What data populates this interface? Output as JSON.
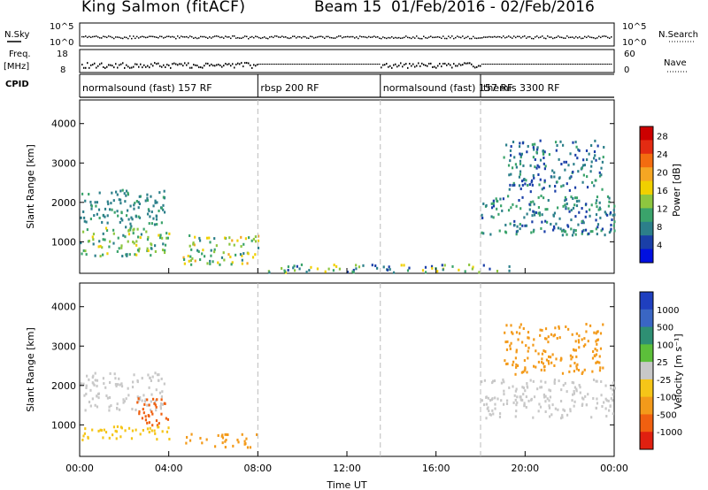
{
  "header": {
    "station": "King Salmon (fitACF)",
    "beam_info": "Beam 15  01/Feb/2016 - 02/Feb/2016"
  },
  "strip_labels": {
    "nsky": "N.Sky",
    "freq": "Freq.",
    "mhz": "[MHz]",
    "cpid": "CPID",
    "nsearch": "N.Search",
    "nave": "Nave",
    "nsky_top": "10^5",
    "nsky_bottom": "10^0",
    "nsearch_top": "10^5",
    "nsearch_bottom": "10^0",
    "freq_top": "18",
    "freq_bottom": "8",
    "nave_top": "60",
    "nave_bottom": "0"
  },
  "cpid_segments": [
    {
      "label": "normalsound (fast) 157 RF",
      "start": "00:00",
      "end": "08:00"
    },
    {
      "label": "rbsp 200 RF",
      "start": "08:00",
      "end": "13:30"
    },
    {
      "label": "normalsound (fast) 157 RF",
      "start": "13:30",
      "end": "18:00"
    },
    {
      "label": "themis 3300 RF",
      "start": "18:00",
      "end": "24:00"
    }
  ],
  "chart_data": [
    {
      "type": "heatmap",
      "title": "",
      "xlabel": "",
      "ylabel": "Slant Range [km]",
      "y_ticks": [
        "1000",
        "2000",
        "3000",
        "4000"
      ],
      "ylim": [
        200,
        4600
      ],
      "colorbar": {
        "label": "Power [dB]",
        "ticks": [
          "4",
          "8",
          "12",
          "16",
          "20",
          "24",
          "28"
        ],
        "range": [
          0,
          30
        ],
        "colors": [
          "#0010e0",
          "#1a3fa8",
          "#2c7f8a",
          "#3aa36b",
          "#8dc63f",
          "#f0d000",
          "#f5a623",
          "#f36c10",
          "#e32b12",
          "#cc0000"
        ]
      },
      "regions": [
        {
          "t_start": 0.0,
          "t_end": 3.8,
          "r_min": 1400,
          "r_max": 2350,
          "power_dB": [
            6,
            10
          ]
        },
        {
          "t_start": 0.0,
          "t_end": 4.0,
          "r_min": 650,
          "r_max": 1400,
          "power_dB": [
            8,
            16
          ]
        },
        {
          "t_start": 4.6,
          "t_end": 8.0,
          "r_min": 450,
          "r_max": 1200,
          "power_dB": [
            6,
            20
          ]
        },
        {
          "t_start": 8.0,
          "t_end": 19.5,
          "r_min": 250,
          "r_max": 450,
          "power_dB": [
            4,
            18
          ]
        },
        {
          "t_start": 18.0,
          "t_end": 24.0,
          "r_min": 1200,
          "r_max": 2200,
          "power_dB": [
            4,
            12
          ]
        },
        {
          "t_start": 19.0,
          "t_end": 23.5,
          "r_min": 2300,
          "r_max": 3600,
          "power_dB": [
            4,
            10
          ]
        }
      ]
    },
    {
      "type": "heatmap",
      "title": "",
      "xlabel": "Time UT",
      "ylabel": "Slant Range [km]",
      "x_ticks": [
        "00:00",
        "04:00",
        "08:00",
        "12:00",
        "16:00",
        "20:00",
        "00:00"
      ],
      "xlim_hours": [
        0,
        24
      ],
      "y_ticks": [
        "1000",
        "2000",
        "3000",
        "4000"
      ],
      "ylim": [
        200,
        4600
      ],
      "colorbar": {
        "label": "Velocity [m s⁻¹]",
        "ticks": [
          "1000",
          "500",
          "100",
          "25",
          "-25",
          "-100",
          "-500",
          "-1000"
        ],
        "colors": [
          "#1f3fbf",
          "#3a66c4",
          "#2e8f73",
          "#5cbf3a",
          "#c8c8c8",
          "#f5c518",
          "#f39a1a",
          "#f06010",
          "#e02010"
        ]
      },
      "ground_scatter_color": "#c8c8c8",
      "regions": [
        {
          "t_start": 0.0,
          "t_end": 3.8,
          "r_min": 1400,
          "r_max": 2350,
          "velocity": "ground"
        },
        {
          "t_start": 2.5,
          "t_end": 4.0,
          "r_min": 1000,
          "r_max": 1700,
          "velocity": [
            -500,
            -1000
          ]
        },
        {
          "t_start": 0.0,
          "t_end": 4.0,
          "r_min": 650,
          "r_max": 1000,
          "velocity": [
            -25,
            -100
          ]
        },
        {
          "t_start": 4.6,
          "t_end": 8.0,
          "r_min": 450,
          "r_max": 800,
          "velocity": [
            -100,
            -500
          ]
        },
        {
          "t_start": 18.0,
          "t_end": 24.0,
          "r_min": 1200,
          "r_max": 2200,
          "velocity": "ground"
        },
        {
          "t_start": 19.0,
          "t_end": 23.5,
          "r_min": 2300,
          "r_max": 3600,
          "velocity": [
            -100,
            -500
          ]
        }
      ]
    }
  ]
}
